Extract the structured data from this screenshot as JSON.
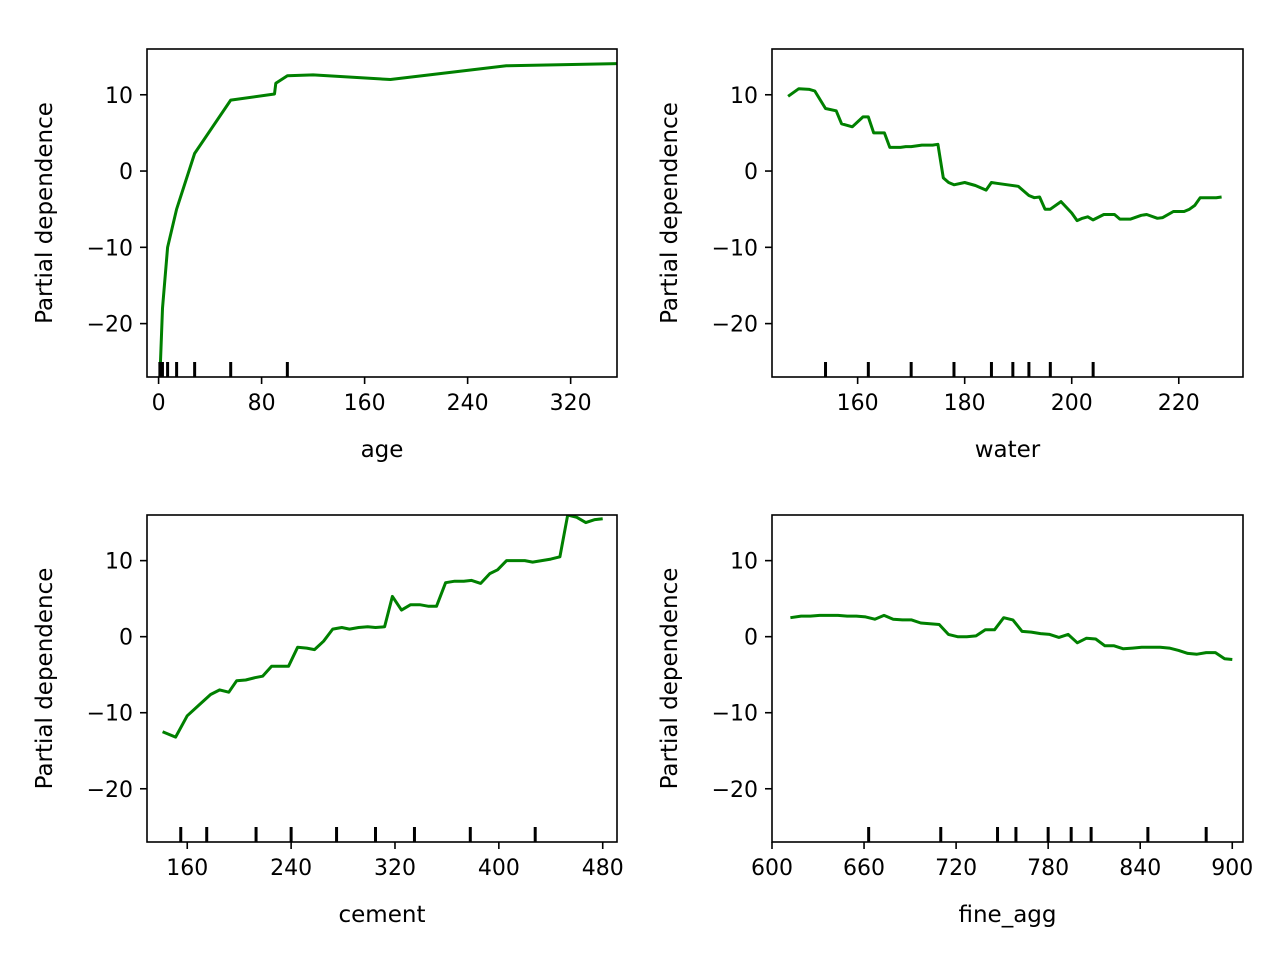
{
  "chart_data": [
    {
      "type": "line",
      "xlabel": "age",
      "ylabel": "Partial dependence",
      "xlim": [
        -9,
        356
      ],
      "ylim": [
        -27,
        16
      ],
      "xticks": [
        0,
        80,
        160,
        240,
        320
      ],
      "yticks": [
        10,
        0,
        -10,
        -20
      ],
      "line_color": "#008000",
      "x": [
        1,
        3,
        7,
        14,
        28,
        56,
        90,
        91,
        100,
        120,
        180,
        270,
        360,
        365
      ],
      "values": [
        -27,
        -18,
        -10,
        -5,
        2.3,
        9.3,
        10.1,
        11.5,
        12.5,
        12.6,
        12.0,
        13.8,
        14.1,
        14.5
      ],
      "rug": [
        1,
        3,
        7,
        14,
        28,
        56,
        100
      ]
    },
    {
      "type": "line",
      "xlabel": "water",
      "ylabel": "Partial dependence",
      "xlim": [
        144,
        232
      ],
      "ylim": [
        -27,
        16
      ],
      "xticks": [
        160,
        180,
        200,
        220
      ],
      "yticks": [
        10,
        0,
        -10,
        -20
      ],
      "line_color": "#008000",
      "x": [
        147,
        149,
        151,
        152,
        154,
        156,
        157,
        159,
        161,
        162,
        163,
        164,
        165,
        166,
        167,
        168,
        169,
        170,
        172,
        174,
        175,
        176,
        177,
        178,
        180,
        182,
        184,
        185,
        186,
        188,
        190,
        192,
        193,
        194,
        195,
        196,
        198,
        200,
        201,
        202,
        203,
        204,
        206,
        208,
        209,
        211,
        213,
        214,
        216,
        217,
        219,
        220,
        221,
        222,
        223,
        224,
        225,
        226,
        227,
        228
      ],
      "values": [
        9.8,
        10.8,
        10.7,
        10.5,
        8.2,
        7.9,
        6.2,
        5.8,
        7.1,
        7.1,
        5.0,
        5.0,
        5.0,
        3.1,
        3.1,
        3.1,
        3.2,
        3.2,
        3.4,
        3.4,
        3.5,
        -0.9,
        -1.5,
        -1.8,
        -1.5,
        -1.9,
        -2.5,
        -1.5,
        -1.6,
        -1.8,
        -2.0,
        -3.2,
        -3.5,
        -3.4,
        -5.0,
        -5.0,
        -4.0,
        -5.5,
        -6.5,
        -6.2,
        -6.0,
        -6.4,
        -5.7,
        -5.7,
        -6.3,
        -6.3,
        -5.8,
        -5.7,
        -6.2,
        -6.1,
        -5.3,
        -5.3,
        -5.3,
        -5.0,
        -4.5,
        -3.5,
        -3.5,
        -3.5,
        -3.5,
        -3.4
      ],
      "rug": [
        154,
        162,
        170,
        178,
        185,
        189,
        192,
        196,
        204
      ]
    },
    {
      "type": "line",
      "xlabel": "cement",
      "ylabel": "Partial dependence",
      "xlim": [
        129,
        491
      ],
      "ylim": [
        -27,
        16
      ],
      "xticks": [
        160,
        240,
        320,
        400,
        480
      ],
      "yticks": [
        10,
        0,
        -10,
        -20
      ],
      "line_color": "#008000",
      "x": [
        141,
        151,
        160,
        169,
        178,
        185,
        192,
        198,
        205,
        212,
        218,
        225,
        232,
        238,
        245,
        252,
        258,
        265,
        272,
        279,
        285,
        292,
        299,
        305,
        312,
        318,
        325,
        332,
        339,
        346,
        352,
        359,
        366,
        373,
        379,
        386,
        393,
        399,
        406,
        413,
        420,
        426,
        433,
        440,
        447,
        453,
        460,
        467,
        474,
        480
      ],
      "values": [
        -12.5,
        -13.2,
        -10.4,
        -9.0,
        -7.6,
        -7.0,
        -7.3,
        -5.8,
        -5.7,
        -5.4,
        -5.2,
        -3.9,
        -3.9,
        -3.9,
        -1.4,
        -1.5,
        -1.7,
        -0.6,
        1.0,
        1.2,
        1.0,
        1.2,
        1.3,
        1.2,
        1.3,
        5.3,
        3.5,
        4.2,
        4.2,
        4.0,
        4.0,
        7.1,
        7.3,
        7.3,
        7.4,
        7.0,
        8.3,
        8.8,
        10.0,
        10.0,
        10.0,
        9.8,
        10.0,
        10.2,
        10.5,
        16.0,
        15.7,
        15.0,
        15.4,
        15.5
      ],
      "rug": [
        155,
        175,
        213,
        240,
        275,
        305,
        335,
        378,
        428
      ]
    },
    {
      "type": "line",
      "xlabel": "fine_agg",
      "ylabel": "Partial dependence",
      "xlim": [
        600,
        907
      ],
      "ylim": [
        -27,
        16
      ],
      "xticks": [
        600,
        660,
        720,
        780,
        840,
        900
      ],
      "yticks": [
        10,
        0,
        -10,
        -20
      ],
      "line_color": "#008000",
      "x": [
        612,
        619,
        625,
        631,
        637,
        643,
        649,
        655,
        661,
        667,
        673,
        679,
        685,
        691,
        697,
        703,
        709,
        715,
        721,
        727,
        733,
        739,
        745,
        751,
        757,
        763,
        769,
        775,
        781,
        787,
        793,
        799,
        805,
        811,
        817,
        823,
        829,
        835,
        841,
        847,
        853,
        859,
        865,
        871,
        877,
        883,
        889,
        895,
        900
      ],
      "values": [
        2.5,
        2.7,
        2.7,
        2.8,
        2.8,
        2.8,
        2.7,
        2.7,
        2.6,
        2.3,
        2.8,
        2.3,
        2.2,
        2.2,
        1.8,
        1.7,
        1.6,
        0.3,
        0.0,
        0.0,
        0.1,
        0.9,
        0.9,
        2.5,
        2.2,
        0.7,
        0.6,
        0.4,
        0.3,
        -0.1,
        0.3,
        -0.8,
        -0.2,
        -0.3,
        -1.2,
        -1.2,
        -1.6,
        -1.5,
        -1.4,
        -1.4,
        -1.4,
        -1.5,
        -1.8,
        -2.2,
        -2.3,
        -2.1,
        -2.1,
        -2.9,
        -3.0
      ],
      "rug": [
        663,
        710,
        747,
        759,
        780,
        795,
        808,
        845,
        883
      ]
    }
  ]
}
